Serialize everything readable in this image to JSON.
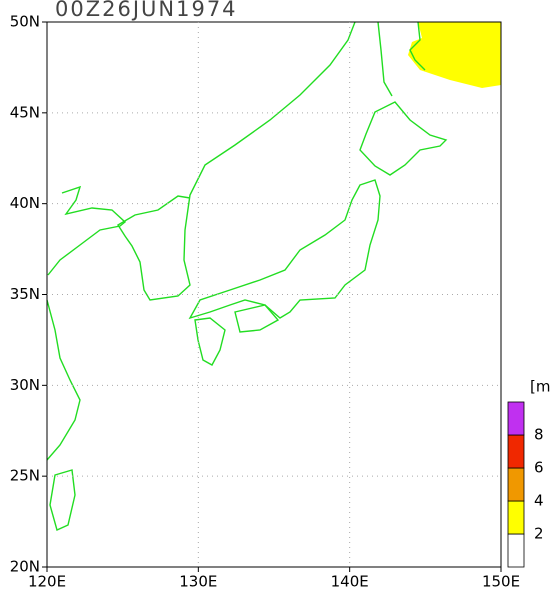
{
  "map": {
    "title": "00Z26JUN1974",
    "xlim": [
      120,
      150
    ],
    "ylim": [
      20,
      50
    ],
    "xticks": [
      {
        "value": 120,
        "label": "120E"
      },
      {
        "value": 130,
        "label": "130E"
      },
      {
        "value": 140,
        "label": "140E"
      },
      {
        "value": 150,
        "label": "150E"
      }
    ],
    "yticks": [
      {
        "value": 20,
        "label": "20N"
      },
      {
        "value": 25,
        "label": "25N"
      },
      {
        "value": 30,
        "label": "30N"
      },
      {
        "value": 35,
        "label": "35N"
      },
      {
        "value": 40,
        "label": "40N"
      },
      {
        "value": 45,
        "label": "45N"
      },
      {
        "value": 50,
        "label": "50N"
      }
    ],
    "grid": true,
    "colorbar": {
      "unit": "[m]",
      "levels": [
        2,
        4,
        6,
        8
      ],
      "colors": [
        "#ffffff",
        "#ffff00",
        "#f09800",
        "#f02800",
        "#c030f0"
      ]
    }
  }
}
